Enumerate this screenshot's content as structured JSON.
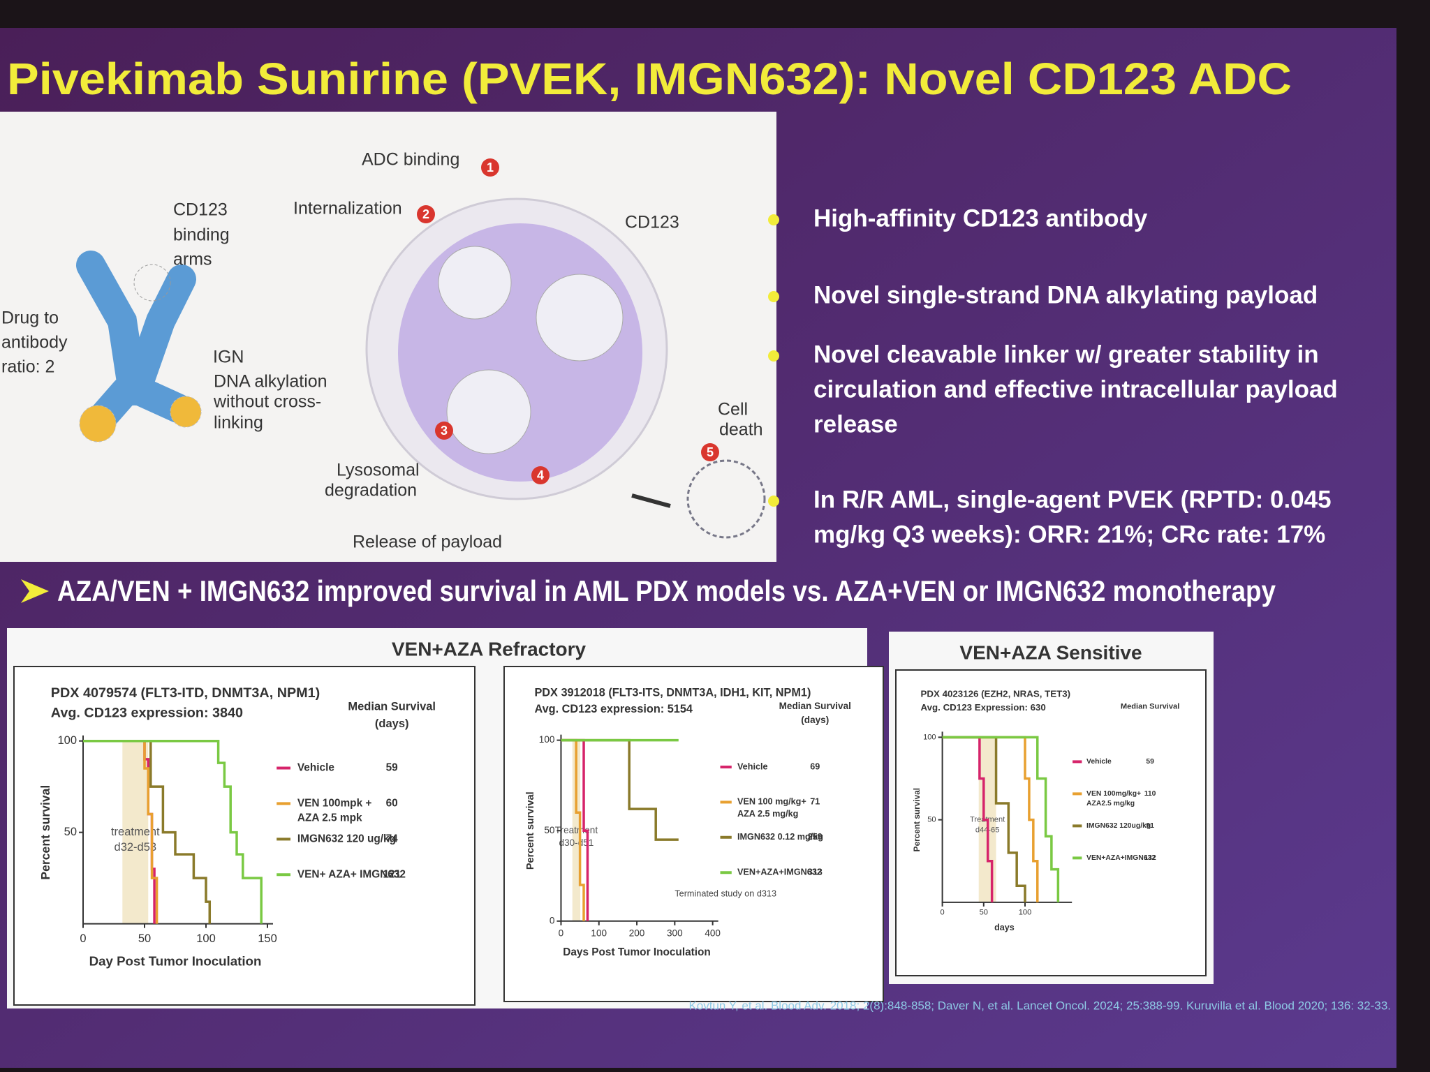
{
  "title": "Pivekimab Sunirine (PVEK, IMGN632): Novel CD123 ADC",
  "diagram": {
    "steps": [
      {
        "number": 1,
        "label": "ADC binding"
      },
      {
        "number": 2,
        "label": "Internalization"
      },
      {
        "number": 3,
        "label": [
          "Lysosomal",
          "degradation"
        ]
      },
      {
        "number": 4,
        "label": "Release of payload"
      },
      {
        "number": 5,
        "label": [
          "Cell",
          "death"
        ]
      }
    ],
    "cd123_arms": [
      "CD123",
      "binding",
      "arms"
    ],
    "dar": [
      "Drug to",
      "antibody",
      "ratio: 2"
    ],
    "ign": "IGN",
    "ign_desc": [
      "DNA alkylation",
      "without cross-",
      "linking"
    ],
    "cd123": "CD123"
  },
  "bullets": [
    [
      "High-affinity CD123 antibody"
    ],
    [
      "Novel single-strand DNA alkylating payload"
    ],
    [
      "Novel cleavable linker w/ greater stability in",
      "circulation and effective intracellular payload",
      "release"
    ],
    [
      "In R/R AML, single-agent PVEK (RPTD: 0.045",
      "mg/kg Q3 weeks): ORR: 21%; CRc rate: 17%"
    ]
  ],
  "heading": "AZA/VEN + IMGN632 improved survival in AML PDX models vs. AZA+VEN or IMGN632 monotherapy",
  "panels": [
    {
      "title": "VEN+AZA Refractory",
      "charts": [
        {
          "type": "line",
          "title": [
            "PDX 4079574 (FLT3-ITD, DNMT3A, NPM1)",
            "Avg. CD123 expression: 3840"
          ],
          "median_header": [
            "Median Survival",
            "(days)"
          ],
          "xlabel": "Day Post Tumor Inoculation",
          "ylabel": "Percent survival",
          "xlim": [
            0,
            150
          ],
          "ylim": [
            0,
            100
          ],
          "xticks": [
            0,
            50,
            100,
            150
          ],
          "yticks": [
            50,
            100
          ],
          "treatment": {
            "label": [
              "treatment",
              "d32-d53"
            ],
            "window": [
              32,
              53
            ]
          },
          "series": [
            {
              "name": [
                "Vehicle"
              ],
              "color": "#d6246a",
              "median": 59,
              "x": [
                0,
                50,
                53,
                56,
                58
              ],
              "values": [
                100,
                90,
                60,
                30,
                0
              ]
            },
            {
              "name": [
                "VEN 100mpk +",
                "AZA 2.5 mpk"
              ],
              "color": "#e8a030",
              "median": 60,
              "x": [
                0,
                50,
                53,
                56,
                60
              ],
              "values": [
                100,
                85,
                60,
                25,
                0
              ]
            },
            {
              "name": [
                "IMGN632 120 ug/kg"
              ],
              "color": "#8a7a2a",
              "median": 74,
              "x": [
                0,
                55,
                65,
                75,
                90,
                100,
                103
              ],
              "values": [
                100,
                75,
                50,
                38,
                25,
                12,
                0
              ]
            },
            {
              "name": [
                "VEN+ AZA+ IMGN632"
              ],
              "color": "#7ac943",
              "median": 121,
              "x": [
                0,
                110,
                115,
                120,
                125,
                130,
                145
              ],
              "values": [
                100,
                88,
                75,
                50,
                38,
                25,
                0
              ]
            }
          ]
        },
        {
          "type": "line",
          "title": [
            "PDX 3912018 (FLT3-ITS, DNMT3A, IDH1, KIT, NPM1)",
            "Avg. CD123 expression: 5154"
          ],
          "median_header": [
            "Median Survival",
            "(days)"
          ],
          "xlabel": "Days Post Tumor Inoculation",
          "ylabel": "Percent survival",
          "xlim": [
            0,
            400
          ],
          "ylim": [
            0,
            100
          ],
          "xticks": [
            0,
            100,
            200,
            300,
            400
          ],
          "yticks": [
            0,
            50,
            100
          ],
          "treatment": {
            "label": [
              "Treatment",
              "d30-d51"
            ],
            "window": [
              30,
              51
            ]
          },
          "note": "Terminated study on d313",
          "series": [
            {
              "name": [
                "Vehicle"
              ],
              "color": "#d6246a",
              "median": 69,
              "x": [
                0,
                60,
                70
              ],
              "values": [
                100,
                50,
                0
              ]
            },
            {
              "name": [
                "VEN 100 mg/kg+",
                "AZA 2.5 mg/kg"
              ],
              "color": "#e8a030",
              "median": 71,
              "x": [
                0,
                40,
                50,
                60
              ],
              "values": [
                100,
                60,
                20,
                0
              ]
            },
            {
              "name": [
                "IMGN632 0.12 mg/kg"
              ],
              "color": "#8a7a2a",
              "median": 259,
              "x": [
                0,
                180,
                250,
                310
              ],
              "values": [
                100,
                62,
                45,
                45
              ]
            },
            {
              "name": [
                "VEN+AZA+IMGN632"
              ],
              "color": "#7ac943",
              "median": 313,
              "x": [
                0,
                310
              ],
              "values": [
                100,
                100
              ]
            }
          ]
        }
      ]
    },
    {
      "title": "VEN+AZA Sensitive",
      "charts": [
        {
          "type": "line",
          "title": [
            "PDX 4023126 (EZH2, NRAS, TET3)",
            "Avg. CD123 Expression: 630"
          ],
          "median_header": [
            "Median Survival"
          ],
          "xlabel": "days",
          "ylabel": "Percent survival",
          "xlim": [
            0,
            150
          ],
          "ylim": [
            0,
            100
          ],
          "xticks": [
            0,
            50,
            100
          ],
          "yticks": [
            50,
            100
          ],
          "treatment": {
            "label": [
              "Treatment",
              "d44-65"
            ],
            "window": [
              44,
              65
            ]
          },
          "series": [
            {
              "name": [
                "Vehicle"
              ],
              "color": "#d6246a",
              "median": 59,
              "x": [
                0,
                45,
                50,
                55,
                60
              ],
              "values": [
                100,
                75,
                50,
                25,
                0
              ]
            },
            {
              "name": [
                "VEN 100mg/kg+",
                "AZA2.5 mg/kg"
              ],
              "color": "#e8a030",
              "median": 110,
              "x": [
                0,
                100,
                105,
                110,
                115
              ],
              "values": [
                100,
                75,
                50,
                25,
                0
              ]
            },
            {
              "name": [
                "IMGN632 120ug/kg"
              ],
              "color": "#8a7a2a",
              "median": 91,
              "x": [
                0,
                65,
                80,
                90,
                100
              ],
              "values": [
                100,
                60,
                30,
                10,
                0
              ]
            },
            {
              "name": [
                "VEN+AZA+IMGN632"
              ],
              "color": "#7ac943",
              "median": 132,
              "x": [
                0,
                115,
                125,
                132,
                140
              ],
              "values": [
                100,
                75,
                40,
                20,
                0
              ]
            }
          ]
        }
      ]
    }
  ],
  "citation": "Kovtun Y, et al. Blood Adv. 2018; 2(8):848-858; Daver N, et al. Lancet Oncol. 2024; 25:388-99. Kuruvilla et al. Blood 2020; 136: 32-33."
}
